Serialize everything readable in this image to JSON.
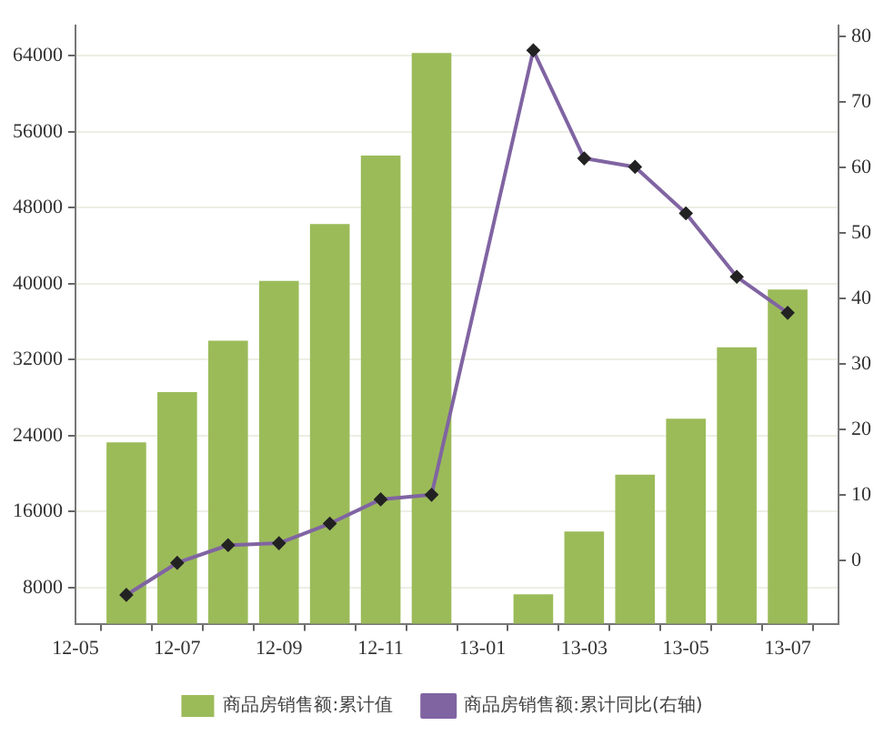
{
  "chart_data": {
    "type": "bar",
    "categories": [
      "12-05",
      null,
      "12-07",
      null,
      "12-09",
      null,
      "12-11",
      null,
      "13-01",
      null,
      "13-03",
      null,
      "13-05",
      null,
      "13-07",
      null
    ],
    "series": [
      {
        "name": "商品房销售额:累计值",
        "color": "#9bbb59",
        "values": [
          null,
          23300,
          28600,
          34000,
          40300,
          46300,
          53500,
          64300,
          null,
          7300,
          13900,
          19900,
          25800,
          33300,
          39400,
          null
        ]
      },
      {
        "name": "商品房销售额:累计同比(右轴)",
        "type": "line",
        "axis": "y2",
        "color": "#8064a2",
        "marker": "diamond",
        "values": [
          null,
          -5.3,
          -0.4,
          2.3,
          2.6,
          5.6,
          9.3,
          10.0,
          null,
          77.9,
          61.4,
          60.1,
          53.0,
          43.3,
          37.8,
          null
        ]
      }
    ],
    "ylim": [
      4200,
      67200
    ],
    "yticks": [
      8000,
      16000,
      24000,
      32000,
      40000,
      48000,
      56000,
      64000
    ],
    "y2lim": [
      -9.7,
      81.7
    ],
    "y2ticks": [
      0,
      10,
      20,
      30,
      40,
      50,
      60,
      70,
      80
    ],
    "grid": "y",
    "legend": "bottom"
  }
}
